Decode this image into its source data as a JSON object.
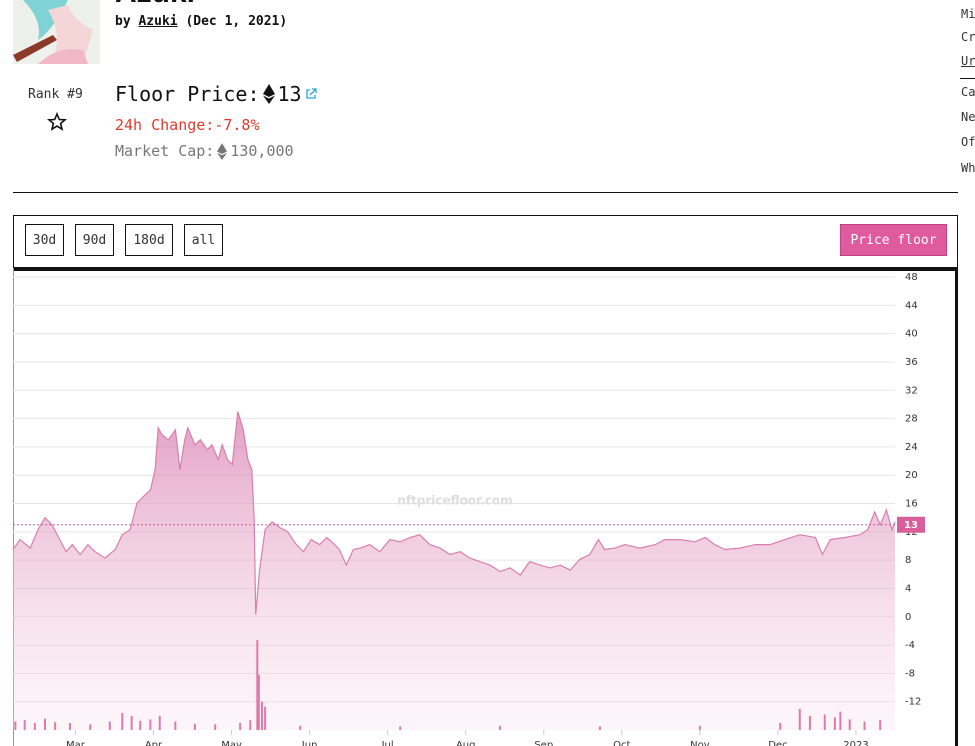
{
  "header": {
    "title": "Azuki",
    "by": "by",
    "creator": "Azuki",
    "date": "(Dec 1, 2021)"
  },
  "stats": {
    "rank": "Rank #9",
    "floor_price_label": "Floor Price:",
    "floor_price": 13,
    "change_label": "24h Change:",
    "change": "-7.8%",
    "market_cap_label": "Market Cap:",
    "market_cap": "130,000"
  },
  "sidebar": [
    "Mi",
    "Cr",
    "Ur",
    "Ca",
    "Ne",
    "Of",
    "Wh"
  ],
  "controls": {
    "ranges": [
      "30d",
      "90d",
      "180d",
      "all"
    ],
    "active_range": "all"
  },
  "chart_data": {
    "type": "area",
    "watermark": "nftpricefloor.com",
    "x": [
      2.2,
      2.29,
      2.42,
      2.52,
      2.61,
      2.7,
      2.8,
      2.88,
      2.96,
      3.06,
      3.16,
      3.25,
      3.38,
      3.51,
      3.6,
      3.7,
      3.79,
      3.89,
      3.96,
      4.02,
      4.06,
      4.11,
      4.19,
      4.28,
      4.34,
      4.4,
      4.44,
      4.53,
      4.6,
      4.69,
      4.75,
      4.83,
      4.88,
      4.95,
      5.01,
      5.08,
      5.15,
      5.21,
      5.26,
      5.29,
      5.31,
      5.36,
      5.43,
      5.52,
      5.62,
      5.72,
      5.83,
      5.92,
      6.02,
      6.13,
      6.22,
      6.32,
      6.38,
      6.47,
      6.56,
      6.65,
      6.77,
      6.9,
      7.03,
      7.16,
      7.29,
      7.41,
      7.54,
      7.67,
      7.8,
      7.93,
      8.05,
      8.18,
      8.31,
      8.44,
      8.57,
      8.7,
      8.82,
      8.95,
      9.08,
      9.21,
      9.34,
      9.46,
      9.59,
      9.7,
      9.78,
      9.91,
      10.04,
      10.23,
      10.43,
      10.55,
      10.75,
      10.94,
      11.07,
      11.19,
      11.32,
      11.51,
      11.71,
      11.9,
      12.09,
      12.28,
      12.48,
      12.57,
      12.67,
      12.86,
      13.05,
      13.15,
      13.24,
      13.31,
      13.39,
      13.46,
      13.5
    ],
    "series": [
      {
        "name": "Price floor",
        "color": "#d97fb1",
        "values": [
          9.5,
          10.9,
          9.7,
          12.3,
          14,
          13,
          10.9,
          9.2,
          10.2,
          8.8,
          10.2,
          9.2,
          8.3,
          9.5,
          11.6,
          12.3,
          16.1,
          17.2,
          17.9,
          20.8,
          26.7,
          25.7,
          25,
          26.4,
          20.8,
          25,
          26.7,
          24.3,
          25,
          23.6,
          24.3,
          22.2,
          24.3,
          22.2,
          21.5,
          29,
          26.4,
          22.2,
          20.8,
          13.7,
          0.3,
          6.6,
          12.3,
          13.4,
          12.6,
          12,
          10.2,
          9.2,
          10.9,
          10.2,
          11.2,
          10.2,
          9.5,
          7.3,
          9.5,
          9.7,
          10.2,
          9.2,
          10.9,
          10.6,
          11.2,
          11.6,
          10.2,
          9.7,
          8.8,
          9.2,
          8.3,
          7.8,
          7.3,
          6.4,
          6.9,
          5.9,
          7.8,
          7.3,
          6.9,
          7.3,
          6.6,
          8.1,
          8.8,
          10.9,
          9.5,
          9.7,
          10.2,
          9.7,
          10.2,
          10.9,
          10.9,
          10.6,
          11.2,
          10.2,
          9.5,
          9.7,
          10.2,
          10.2,
          10.9,
          11.6,
          11.2,
          8.8,
          10.9,
          11.2,
          11.6,
          12.3,
          14.8,
          13,
          15.1,
          12.3,
          13.4
        ]
      }
    ],
    "volume": {
      "color": "#e07aa8",
      "x": [
        2.23,
        2.35,
        2.48,
        2.61,
        2.74,
        2.93,
        3.19,
        3.44,
        3.6,
        3.72,
        3.83,
        3.96,
        4.08,
        4.28,
        4.53,
        4.79,
        5.11,
        5.24,
        5.33,
        5.35,
        5.39,
        5.43,
        5.88,
        7.16,
        8.44,
        9.72,
        11.0,
        12.03,
        12.28,
        12.41,
        12.6,
        12.73,
        12.8,
        12.92,
        13.11,
        13.31
      ],
      "values": [
        1.2,
        1.4,
        1.0,
        1.6,
        1.1,
        1.0,
        0.8,
        1.2,
        2.4,
        2.0,
        1.3,
        1.5,
        2.0,
        1.2,
        0.9,
        0.8,
        1.0,
        1.4,
        12.7,
        7.8,
        4.0,
        3.3,
        0.6,
        0.5,
        0.6,
        0.5,
        0.6,
        1.0,
        3.0,
        2.0,
        2.2,
        1.8,
        2.6,
        1.5,
        1.2,
        1.4
      ]
    },
    "current_price": 13,
    "xlim": [
      2.2,
      13.5
    ],
    "xticks": [
      {
        "value": 3,
        "label": "Mar"
      },
      {
        "value": 4,
        "label": "Apr"
      },
      {
        "value": 5,
        "label": "May"
      },
      {
        "value": 6,
        "label": "Jun"
      },
      {
        "value": 7,
        "label": "Jul"
      },
      {
        "value": 8,
        "label": "Aug"
      },
      {
        "value": 9,
        "label": "Sep"
      },
      {
        "value": 10,
        "label": "Oct"
      },
      {
        "value": 11,
        "label": "Nov"
      },
      {
        "value": 12,
        "label": "Dec"
      },
      {
        "value": 13,
        "label": "2023"
      }
    ],
    "ylim": [
      -16,
      49
    ],
    "yticks": [
      -12,
      -8,
      -4,
      0,
      4,
      8,
      12,
      16,
      20,
      24,
      28,
      32,
      36,
      40,
      44,
      48
    ],
    "grid": true
  }
}
